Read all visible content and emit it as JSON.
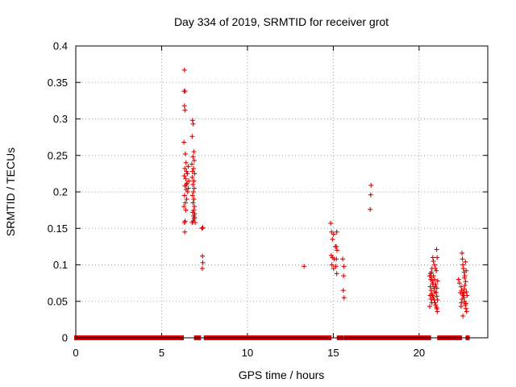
{
  "chart_data": {
    "type": "scatter",
    "title": "Day 334 of 2019, SRMTID for receiver grot",
    "xlabel": "GPS time / hours",
    "ylabel": "SRMTID / TECUs",
    "xlim": [
      0,
      24
    ],
    "ylim": [
      0,
      0.4
    ],
    "x_ticks": [
      0,
      5,
      10,
      15,
      20
    ],
    "x_tick_labels": [
      "0",
      "5",
      "10",
      "15",
      "20"
    ],
    "y_ticks": [
      0,
      0.05,
      0.1,
      0.15,
      0.2,
      0.25,
      0.3,
      0.35,
      0.4
    ],
    "y_tick_labels": [
      "0",
      "0.05",
      "0.1",
      "0.15",
      "0.2",
      "0.25",
      "0.3",
      "0.35",
      "0.4"
    ],
    "grid": true,
    "marker": "+",
    "color": "#dd0000",
    "series": [
      {
        "points": [
          [
            6.33,
            0.367
          ],
          [
            6.31,
            0.338
          ],
          [
            6.37,
            0.338
          ],
          [
            6.33,
            0.318
          ],
          [
            6.36,
            0.312
          ],
          [
            6.3,
            0.268
          ],
          [
            6.38,
            0.252
          ],
          [
            6.42,
            0.24
          ],
          [
            6.35,
            0.232
          ],
          [
            6.45,
            0.228
          ],
          [
            6.32,
            0.222
          ],
          [
            6.4,
            0.218
          ],
          [
            6.48,
            0.212
          ],
          [
            6.36,
            0.208
          ],
          [
            6.43,
            0.203
          ],
          [
            6.52,
            0.2
          ],
          [
            6.34,
            0.195
          ],
          [
            6.46,
            0.19
          ],
          [
            6.38,
            0.185
          ],
          [
            6.3,
            0.18
          ],
          [
            6.41,
            0.175
          ],
          [
            6.37,
            0.16
          ],
          [
            6.33,
            0.158
          ],
          [
            6.35,
            0.145
          ],
          [
            6.55,
            0.235
          ],
          [
            6.5,
            0.225
          ],
          [
            6.58,
            0.215
          ],
          [
            6.44,
            0.21
          ],
          [
            6.56,
            0.205
          ],
          [
            6.8,
            0.298
          ],
          [
            6.84,
            0.293
          ],
          [
            6.78,
            0.276
          ],
          [
            6.88,
            0.255
          ],
          [
            6.83,
            0.248
          ],
          [
            6.9,
            0.243
          ],
          [
            6.76,
            0.238
          ],
          [
            6.86,
            0.232
          ],
          [
            6.8,
            0.228
          ],
          [
            6.92,
            0.225
          ],
          [
            6.78,
            0.22
          ],
          [
            6.88,
            0.215
          ],
          [
            6.82,
            0.21
          ],
          [
            6.9,
            0.205
          ],
          [
            6.85,
            0.2
          ],
          [
            6.8,
            0.195
          ],
          [
            6.88,
            0.19
          ],
          [
            6.83,
            0.185
          ],
          [
            6.91,
            0.18
          ],
          [
            6.87,
            0.175
          ],
          [
            6.81,
            0.172
          ],
          [
            6.93,
            0.17
          ],
          [
            6.86,
            0.167
          ],
          [
            6.89,
            0.163
          ],
          [
            6.84,
            0.16
          ],
          [
            6.95,
            0.158
          ],
          [
            6.78,
            0.158
          ],
          [
            6.92,
            0.165
          ],
          [
            7.35,
            0.15
          ],
          [
            7.4,
            0.151
          ],
          [
            7.38,
            0.112
          ],
          [
            7.4,
            0.103
          ],
          [
            7.37,
            0.095
          ],
          [
            13.3,
            0.098
          ],
          [
            14.85,
            0.157
          ],
          [
            14.9,
            0.145
          ],
          [
            15.02,
            0.142
          ],
          [
            14.95,
            0.135
          ],
          [
            15.2,
            0.145
          ],
          [
            15.12,
            0.125
          ],
          [
            15.18,
            0.125
          ],
          [
            15.22,
            0.12
          ],
          [
            14.88,
            0.113
          ],
          [
            14.95,
            0.11
          ],
          [
            15.05,
            0.108
          ],
          [
            15.18,
            0.108
          ],
          [
            14.92,
            0.1
          ],
          [
            15.15,
            0.098
          ],
          [
            15.02,
            0.095
          ],
          [
            15.2,
            0.088
          ],
          [
            15.55,
            0.108
          ],
          [
            15.62,
            0.098
          ],
          [
            15.6,
            0.085
          ],
          [
            15.58,
            0.065
          ],
          [
            15.63,
            0.055
          ],
          [
            17.2,
            0.209
          ],
          [
            17.18,
            0.196
          ],
          [
            17.15,
            0.176
          ],
          [
            20.62,
            0.085
          ],
          [
            20.68,
            0.08
          ],
          [
            20.72,
            0.09
          ],
          [
            20.75,
            0.095
          ],
          [
            20.8,
            0.11
          ],
          [
            20.83,
            0.105
          ],
          [
            20.9,
            0.1
          ],
          [
            20.95,
            0.095
          ],
          [
            21.02,
            0.121
          ],
          [
            21.05,
            0.11
          ],
          [
            21.0,
            0.092
          ],
          [
            21.08,
            0.078
          ],
          [
            20.65,
            0.07
          ],
          [
            20.7,
            0.065
          ],
          [
            20.73,
            0.06
          ],
          [
            20.78,
            0.058
          ],
          [
            20.82,
            0.055
          ],
          [
            20.88,
            0.052
          ],
          [
            20.92,
            0.048
          ],
          [
            20.96,
            0.045
          ],
          [
            21.0,
            0.042
          ],
          [
            21.04,
            0.04
          ],
          [
            21.06,
            0.036
          ],
          [
            20.66,
            0.088
          ],
          [
            20.71,
            0.083
          ],
          [
            20.76,
            0.078
          ],
          [
            20.81,
            0.073
          ],
          [
            20.86,
            0.068
          ],
          [
            20.91,
            0.063
          ],
          [
            20.97,
            0.073
          ],
          [
            21.03,
            0.068
          ],
          [
            20.64,
            0.058
          ],
          [
            20.69,
            0.053
          ],
          [
            20.74,
            0.048
          ],
          [
            20.79,
            0.075
          ],
          [
            20.84,
            0.085
          ],
          [
            20.89,
            0.08
          ],
          [
            20.94,
            0.07
          ],
          [
            20.99,
            0.062
          ],
          [
            21.03,
            0.057
          ],
          [
            21.07,
            0.052
          ],
          [
            20.62,
            0.043
          ],
          [
            22.3,
            0.08
          ],
          [
            22.35,
            0.075
          ],
          [
            22.45,
            0.07
          ],
          [
            22.5,
            0.116
          ],
          [
            22.52,
            0.108
          ],
          [
            22.55,
            0.1
          ],
          [
            22.58,
            0.095
          ],
          [
            22.62,
            0.09
          ],
          [
            22.66,
            0.085
          ],
          [
            22.7,
            0.104
          ],
          [
            22.74,
            0.092
          ],
          [
            22.48,
            0.065
          ],
          [
            22.53,
            0.06
          ],
          [
            22.57,
            0.058
          ],
          [
            22.61,
            0.055
          ],
          [
            22.65,
            0.05
          ],
          [
            22.69,
            0.045
          ],
          [
            22.73,
            0.04
          ],
          [
            22.77,
            0.036
          ],
          [
            22.55,
            0.03
          ],
          [
            22.46,
            0.048
          ],
          [
            22.5,
            0.053
          ],
          [
            22.59,
            0.062
          ],
          [
            22.63,
            0.067
          ],
          [
            22.67,
            0.072
          ],
          [
            22.71,
            0.077
          ],
          [
            22.75,
            0.063
          ],
          [
            22.79,
            0.058
          ],
          [
            22.4,
            0.062
          ],
          [
            22.44,
            0.043
          ],
          [
            22.64,
            0.082
          ],
          [
            22.72,
            0.047
          ]
        ]
      },
      {
        "zero_intervals": [
          [
            0.0,
            6.2
          ],
          [
            6.98,
            7.2
          ],
          [
            7.55,
            14.8
          ],
          [
            15.3,
            15.5
          ],
          [
            15.7,
            20.6
          ],
          [
            21.15,
            22.4
          ],
          [
            22.8,
            22.85
          ]
        ]
      }
    ]
  }
}
